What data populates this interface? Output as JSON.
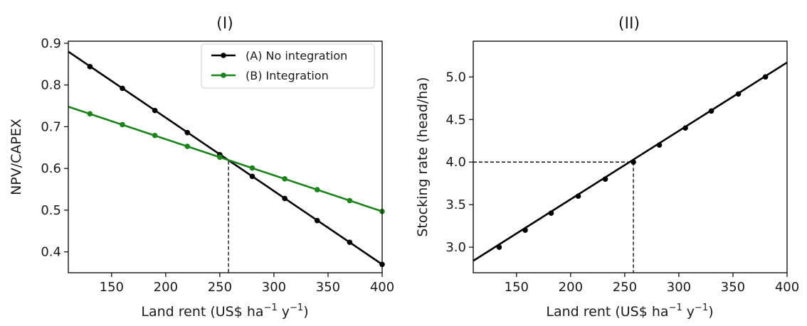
{
  "chart_data": [
    {
      "type": "line",
      "title": "(I)",
      "xlabel_main": "Land rent (US$ ha",
      "xlabel_exp1": "−1",
      "xlabel_mid": " y",
      "xlabel_exp2": "−1",
      "xlabel_end": ")",
      "ylabel": "NPV/CAPEX",
      "xlim": [
        110,
        400
      ],
      "ylim": [
        0.35,
        0.905
      ],
      "xticks": [
        150,
        200,
        250,
        300,
        350,
        400
      ],
      "yticks": [
        0.4,
        0.5,
        0.6,
        0.7,
        0.8,
        0.9
      ],
      "ytick_labels": [
        "0.4",
        "0.5",
        "0.6",
        "0.7",
        "0.8",
        "0.9"
      ],
      "legend_position": "top-right",
      "series": [
        {
          "name": "(A) No integration",
          "color": "#000000",
          "line": [
            [
              110,
              0.88
            ],
            [
              400,
              0.37
            ]
          ],
          "x": [
            130,
            160,
            190,
            220,
            250,
            280,
            310,
            340,
            370,
            400
          ],
          "y": [
            0.844,
            0.792,
            0.739,
            0.686,
            0.633,
            0.581,
            0.528,
            0.475,
            0.423,
            0.37
          ]
        },
        {
          "name": "(B) Integration",
          "color": "#1a841a",
          "line": [
            [
              110,
              0.748
            ],
            [
              400,
              0.497
            ]
          ],
          "x": [
            130,
            160,
            190,
            220,
            250,
            280,
            310,
            340,
            370,
            400
          ],
          "y": [
            0.731,
            0.705,
            0.679,
            0.653,
            0.627,
            0.601,
            0.575,
            0.549,
            0.523,
            0.497
          ]
        }
      ],
      "reference": {
        "x": 258,
        "y": 0.618
      }
    },
    {
      "type": "line",
      "title": "(II)",
      "xlabel_main": "Land rent (US$ ha",
      "xlabel_exp1": "−1",
      "xlabel_mid": " y",
      "xlabel_exp2": "−1",
      "xlabel_end": ")",
      "ylabel": "Stocking rate (head/ha)",
      "xlim": [
        110,
        400
      ],
      "ylim": [
        2.7,
        5.42
      ],
      "xticks": [
        150,
        200,
        250,
        300,
        350,
        400
      ],
      "yticks": [
        3.0,
        3.5,
        4.0,
        4.5,
        5.0
      ],
      "ytick_labels": [
        "3.0",
        "3.5",
        "4.0",
        "4.5",
        "5.0"
      ],
      "series": [
        {
          "color": "#000000",
          "line": [
            [
              110,
              2.84
            ],
            [
              400,
              5.17
            ]
          ],
          "x": [
            134,
            158,
            182,
            207,
            232,
            258,
            282,
            306,
            330,
            355,
            380
          ],
          "y": [
            3.0,
            3.2,
            3.4,
            3.6,
            3.8,
            4.0,
            4.2,
            4.4,
            4.6,
            4.8,
            5.0
          ]
        }
      ],
      "reference": {
        "x": 258,
        "y": 4.0
      }
    }
  ]
}
